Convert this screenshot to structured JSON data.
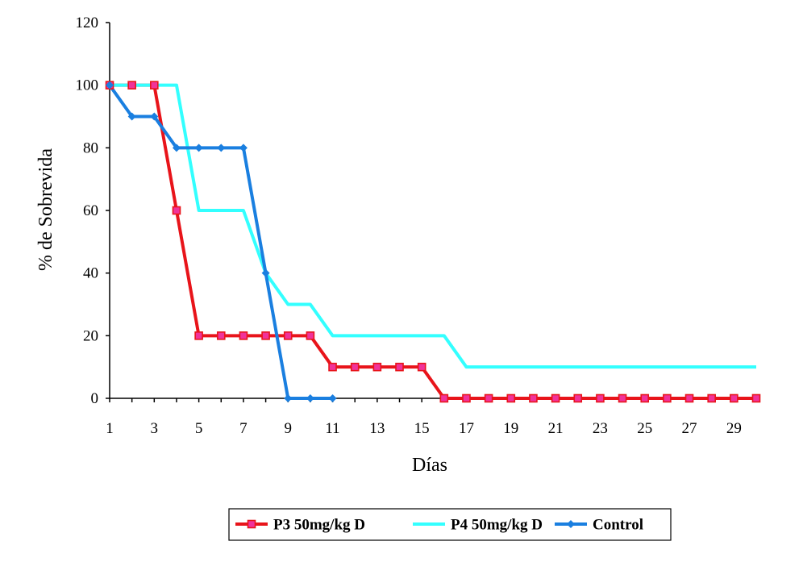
{
  "chart_data": {
    "type": "line",
    "title": "",
    "xlabel": "Días",
    "ylabel": "% de Sobrevida",
    "xlim": [
      1,
      30
    ],
    "ylim": [
      0,
      120
    ],
    "x_ticks": [
      1,
      3,
      5,
      7,
      9,
      11,
      13,
      15,
      17,
      19,
      21,
      23,
      25,
      27,
      29
    ],
    "y_ticks": [
      0,
      20,
      40,
      60,
      80,
      100,
      120
    ],
    "grid": false,
    "legend_position": "bottom",
    "series": [
      {
        "name": "P3 50mg/kg D",
        "color": "#e8141a",
        "marker": "square",
        "marker_color": "#f0329a",
        "x": [
          1,
          2,
          3,
          4,
          5,
          6,
          7,
          8,
          9,
          10,
          11,
          12,
          13,
          14,
          15,
          16,
          17,
          18,
          19,
          20,
          21,
          22,
          23,
          24,
          25,
          26,
          27,
          28,
          29,
          30
        ],
        "y": [
          100,
          100,
          100,
          60,
          20,
          20,
          20,
          20,
          20,
          20,
          10,
          10,
          10,
          10,
          10,
          0,
          0,
          0,
          0,
          0,
          0,
          0,
          0,
          0,
          0,
          0,
          0,
          0,
          0,
          0
        ]
      },
      {
        "name": "P4 50mg/kg D",
        "color": "#33ffff",
        "marker": "none",
        "x": [
          1,
          2,
          3,
          4,
          5,
          6,
          7,
          8,
          9,
          10,
          11,
          12,
          13,
          14,
          15,
          16,
          17,
          18,
          19,
          20,
          21,
          22,
          23,
          24,
          25,
          26,
          27,
          28,
          29,
          30
        ],
        "y": [
          100,
          100,
          100,
          100,
          60,
          60,
          60,
          40,
          30,
          30,
          20,
          20,
          20,
          20,
          20,
          20,
          10,
          10,
          10,
          10,
          10,
          10,
          10,
          10,
          10,
          10,
          10,
          10,
          10,
          10
        ]
      },
      {
        "name": "Control",
        "color": "#1a7fe0",
        "marker": "diamond",
        "marker_color": "#1a7fe0",
        "x": [
          1,
          2,
          3,
          4,
          5,
          6,
          7,
          8,
          9,
          10,
          11
        ],
        "y": [
          100,
          90,
          90,
          80,
          80,
          80,
          80,
          40,
          0,
          0,
          0
        ]
      }
    ]
  }
}
